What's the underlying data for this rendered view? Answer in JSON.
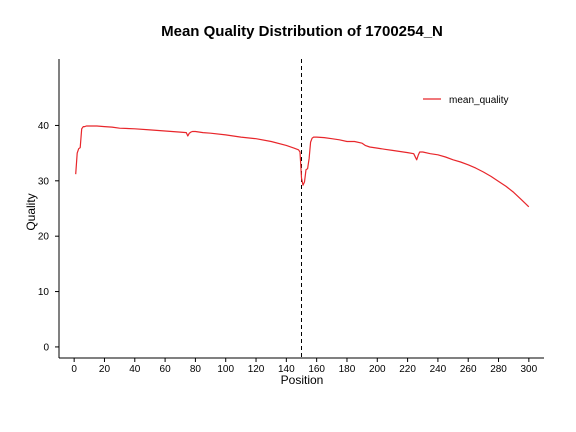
{
  "chart_data": {
    "type": "line",
    "title": "Mean Quality Distribution of 1700254_N",
    "xlabel": "Position",
    "ylabel": "Quality",
    "xlim": [
      -10,
      310
    ],
    "ylim": [
      -2,
      52
    ],
    "xticks": [
      0,
      20,
      40,
      60,
      80,
      100,
      120,
      140,
      160,
      180,
      200,
      220,
      240,
      260,
      280,
      300
    ],
    "yticks": [
      0,
      10,
      20,
      30,
      40
    ],
    "grid": false,
    "legend_position": "top-right",
    "vline": {
      "x": 150,
      "style": "dashed",
      "color": "#000000"
    },
    "series": [
      {
        "name": "mean_quality",
        "color": "#e8262b",
        "x": [
          1,
          2,
          3,
          4,
          5,
          6,
          7,
          8,
          10,
          15,
          20,
          25,
          30,
          40,
          50,
          60,
          70,
          74,
          75,
          76,
          77,
          78,
          80,
          85,
          90,
          100,
          110,
          120,
          130,
          140,
          145,
          148,
          149,
          150,
          151,
          152,
          153,
          154,
          155,
          156,
          157,
          158,
          160,
          165,
          170,
          175,
          180,
          185,
          190,
          192,
          195,
          200,
          205,
          210,
          215,
          220,
          224,
          226,
          227,
          228,
          230,
          235,
          240,
          245,
          250,
          255,
          260,
          265,
          270,
          275,
          280,
          285,
          290,
          295,
          300
        ],
        "values": [
          31.2,
          35.0,
          35.8,
          36.0,
          39.4,
          39.8,
          39.8,
          39.9,
          39.9,
          39.9,
          39.8,
          39.7,
          39.5,
          39.4,
          39.2,
          39.0,
          38.8,
          38.7,
          38.1,
          38.6,
          38.8,
          38.9,
          38.9,
          38.7,
          38.6,
          38.3,
          37.9,
          37.6,
          37.1,
          36.4,
          35.9,
          35.6,
          35.2,
          30.5,
          29.2,
          29.8,
          32.0,
          32.2,
          34.0,
          37.0,
          37.7,
          37.9,
          37.9,
          37.8,
          37.6,
          37.4,
          37.1,
          37.1,
          36.8,
          36.4,
          36.1,
          35.9,
          35.7,
          35.5,
          35.3,
          35.1,
          34.9,
          33.8,
          34.6,
          35.2,
          35.2,
          34.9,
          34.7,
          34.3,
          33.8,
          33.4,
          32.9,
          32.3,
          31.6,
          30.8,
          29.9,
          29.0,
          27.9,
          26.6,
          25.3
        ]
      }
    ]
  }
}
